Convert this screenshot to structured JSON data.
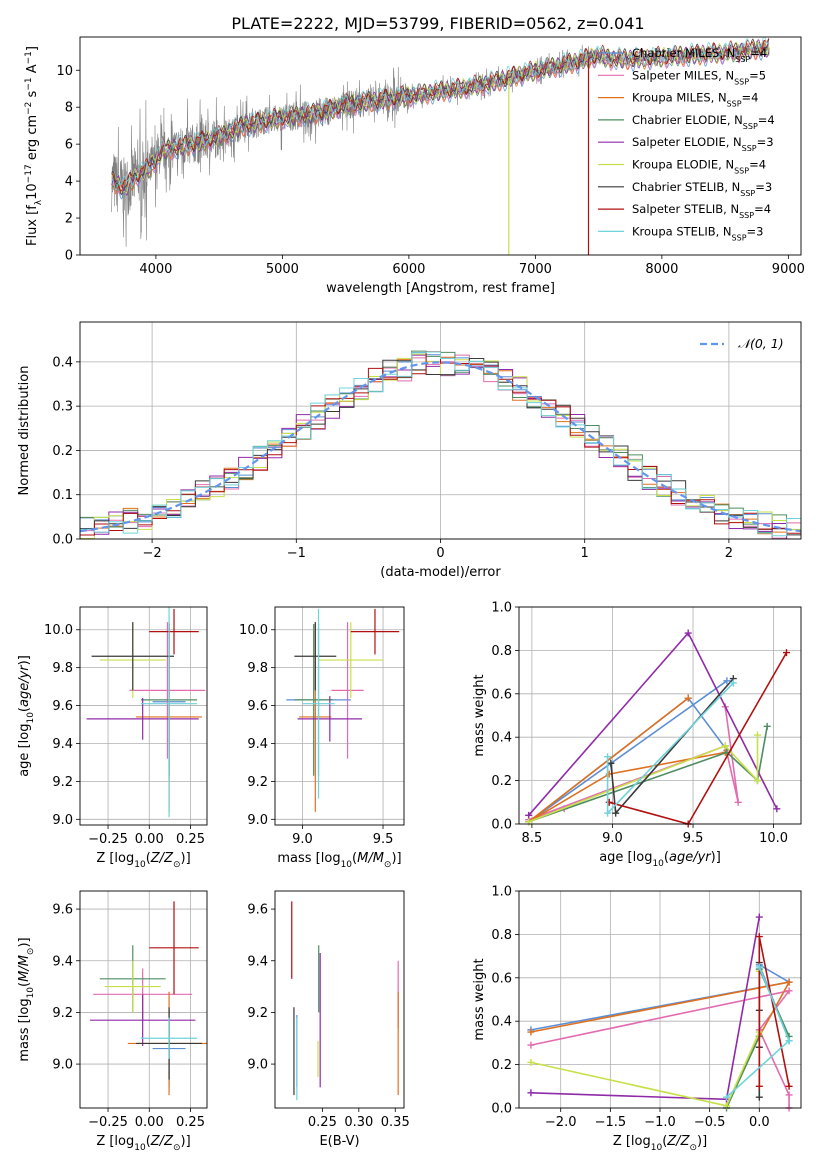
{
  "title": "PLATE=2222, MJD=53799, FIBERID=0562, z=0.041",
  "colors": {
    "chabrier_miles": "#5b8fd4",
    "salpeter_miles": "#e36bb0",
    "kroupa_miles": "#e0701e",
    "chabrier_elodie": "#4e8d62",
    "salpeter_elodie": "#8f2aa8",
    "kroupa_elodie": "#c7e04a",
    "chabrier_stelib": "#3a3a3a",
    "salpeter_stelib": "#b01010",
    "kroupa_stelib": "#6fd3dc",
    "data": "#808080",
    "normal": "#6495ed"
  },
  "legend": [
    {
      "key": "chabrier_miles",
      "label": "Chabrier MILES, N",
      "sub": "SSP",
      "tail": "=4"
    },
    {
      "key": "salpeter_miles",
      "label": "Salpeter MILES, N",
      "sub": "SSP",
      "tail": "=5"
    },
    {
      "key": "kroupa_miles",
      "label": "Kroupa MILES, N",
      "sub": "SSP",
      "tail": "=4"
    },
    {
      "key": "chabrier_elodie",
      "label": "Chabrier ELODIE, N",
      "sub": "SSP",
      "tail": "=4"
    },
    {
      "key": "salpeter_elodie",
      "label": "Salpeter ELODIE, N",
      "sub": "SSP",
      "tail": "=3"
    },
    {
      "key": "kroupa_elodie",
      "label": "Kroupa ELODIE, N",
      "sub": "SSP",
      "tail": "=4"
    },
    {
      "key": "chabrier_stelib",
      "label": "Chabrier STELIB, N",
      "sub": "SSP",
      "tail": "=3"
    },
    {
      "key": "salpeter_stelib",
      "label": "Salpeter STELIB, N",
      "sub": "SSP",
      "tail": "=4"
    },
    {
      "key": "kroupa_stelib",
      "label": "Kroupa STELIB, N",
      "sub": "SSP",
      "tail": "=3"
    }
  ],
  "chart_data": [
    {
      "id": "spectrum",
      "type": "line",
      "xlabel": "wavelength [Angstrom, rest frame]",
      "ylabel": "Flux [f_λ10^-17 erg cm^-2 s^-1 A^-1]",
      "xlim": [
        3400,
        9100
      ],
      "ylim": [
        0,
        11.8
      ],
      "xticks": [
        4000,
        5000,
        6000,
        7000,
        8000,
        9000
      ],
      "yticks": [
        0,
        2,
        4,
        6,
        8,
        10
      ],
      "grid": false,
      "continuum": [
        [
          3650,
          4.0
        ],
        [
          3750,
          3.6
        ],
        [
          3850,
          4.3
        ],
        [
          3950,
          4.7
        ],
        [
          4050,
          5.6
        ],
        [
          4150,
          5.8
        ],
        [
          4300,
          6.0
        ],
        [
          4500,
          6.4
        ],
        [
          4700,
          7.0
        ],
        [
          4900,
          7.3
        ],
        [
          5100,
          7.5
        ],
        [
          5300,
          7.7
        ],
        [
          5500,
          8.1
        ],
        [
          5700,
          8.3
        ],
        [
          5900,
          8.5
        ],
        [
          6100,
          8.7
        ],
        [
          6300,
          8.9
        ],
        [
          6500,
          9.1
        ],
        [
          6700,
          9.4
        ],
        [
          6900,
          9.8
        ],
        [
          7100,
          10.1
        ],
        [
          7300,
          10.4
        ],
        [
          7500,
          10.8
        ],
        [
          7600,
          10.6
        ],
        [
          7800,
          10.6
        ],
        [
          8000,
          10.7
        ],
        [
          8200,
          10.8
        ],
        [
          8400,
          10.9
        ],
        [
          8600,
          11.0
        ],
        [
          8800,
          11.2
        ]
      ],
      "model_x_range": [
        3650,
        8850
      ],
      "dropouts": [
        {
          "key": "kroupa_elodie",
          "x": 6790
        },
        {
          "key": "salpeter_stelib",
          "x": 7420
        }
      ]
    },
    {
      "id": "residual-hist",
      "type": "line",
      "xlabel": "(data-model)/error",
      "ylabel": "Normed distribution",
      "xlim": [
        -2.5,
        2.5
      ],
      "ylim": [
        0,
        0.49
      ],
      "xticks": [
        -2,
        -1,
        0,
        1,
        2
      ],
      "yticks": [
        0.0,
        0.1,
        0.2,
        0.3,
        0.4
      ],
      "grid": true,
      "bin_width": 0.1,
      "legend_label": "𝒩(0, 1)",
      "series": [
        {
          "name": "𝒩(0, 1)",
          "mean": 0,
          "sigma": 1
        }
      ]
    },
    {
      "id": "age-vs-Z",
      "type": "scatter",
      "xlabel": "Z [log10(Z/Z☉)]",
      "ylabel": "age  [log10(age/yr)]",
      "xlim": [
        -0.42,
        0.35
      ],
      "ylim": [
        8.97,
        10.12
      ],
      "xticks": [
        -0.25,
        0.0,
        0.25
      ],
      "xticklabels": [
        "−0.25",
        "0.00",
        "0.25"
      ],
      "yticks": [
        9.0,
        9.2,
        9.4,
        9.6,
        9.8,
        10.0
      ],
      "grid": true,
      "points": [
        {
          "key": "chabrier_miles",
          "x": 0.12,
          "y": 9.62,
          "xerr": 0.1,
          "yerr": 0.42
        },
        {
          "key": "salpeter_miles",
          "x": 0.11,
          "y": 9.68,
          "xerr": 0.23,
          "yerr": 0.36
        },
        {
          "key": "kroupa_miles",
          "x": 0.12,
          "y": 9.54,
          "xerr": 0.2,
          "yerr": 0.5
        },
        {
          "key": "chabrier_elodie",
          "x": 0.12,
          "y": 9.63,
          "xerr": 0.17,
          "yerr": 0.4
        },
        {
          "key": "salpeter_elodie",
          "x": -0.04,
          "y": 9.53,
          "xerr": 0.34,
          "yerr": 0.11
        },
        {
          "key": "kroupa_elodie",
          "x": -0.1,
          "y": 9.84,
          "xerr": 0.2,
          "yerr": 0.2
        },
        {
          "key": "chabrier_stelib",
          "x": -0.1,
          "y": 9.86,
          "xerr": 0.25,
          "yerr": 0.18
        },
        {
          "key": "salpeter_stelib",
          "x": 0.15,
          "y": 9.99,
          "xerr": 0.15,
          "yerr": 0.12
        },
        {
          "key": "kroupa_stelib",
          "x": 0.12,
          "y": 9.61,
          "xerr": 0.17,
          "yerr": 0.6
        }
      ]
    },
    {
      "id": "age-vs-mass",
      "type": "scatter",
      "xlabel": "mass [log10(M/M☉)]",
      "ylabel": "",
      "xlim": [
        8.83,
        9.63
      ],
      "ylim": [
        8.97,
        10.12
      ],
      "xticks": [
        9.0,
        9.5
      ],
      "xticklabels": [
        "9.0",
        "9.5"
      ],
      "yticks": [
        9.0,
        9.2,
        9.4,
        9.6,
        9.8,
        10.0
      ],
      "grid": true,
      "points": [
        {
          "key": "chabrier_miles",
          "x": 9.1,
          "y": 9.63,
          "xerr": 0.2,
          "yerr": 0.4
        },
        {
          "key": "salpeter_miles",
          "x": 9.28,
          "y": 9.68,
          "xerr": 0.1,
          "yerr": 0.36
        },
        {
          "key": "kroupa_miles",
          "x": 9.08,
          "y": 9.54,
          "xerr": 0.1,
          "yerr": 0.5
        },
        {
          "key": "chabrier_elodie",
          "x": 9.07,
          "y": 9.63,
          "xerr": 0.12,
          "yerr": 0.4
        },
        {
          "key": "salpeter_elodie",
          "x": 9.17,
          "y": 9.53,
          "xerr": 0.2,
          "yerr": 0.12
        },
        {
          "key": "kroupa_elodie",
          "x": 9.3,
          "y": 9.84,
          "xerr": 0.2,
          "yerr": 0.2
        },
        {
          "key": "chabrier_stelib",
          "x": 9.08,
          "y": 9.86,
          "xerr": 0.13,
          "yerr": 0.18
        },
        {
          "key": "salpeter_stelib",
          "x": 9.45,
          "y": 9.99,
          "xerr": 0.15,
          "yerr": 0.12
        },
        {
          "key": "kroupa_stelib",
          "x": 9.1,
          "y": 9.61,
          "xerr": 0.1,
          "yerr": 0.5
        }
      ]
    },
    {
      "id": "weight-vs-age",
      "type": "line",
      "xlabel": "age  [log10(age/yr)]",
      "ylabel": "mass weight",
      "xlim": [
        8.42,
        10.17
      ],
      "ylim": [
        0,
        1.0
      ],
      "xticks": [
        8.5,
        9.0,
        9.5,
        10.0
      ],
      "xticklabels": [
        "8.5",
        "9.0",
        "9.5",
        "10.0"
      ],
      "yticks": [
        0.0,
        0.2,
        0.4,
        0.6,
        0.8,
        1.0
      ],
      "grid": true,
      "series": [
        {
          "key": "chabrier_miles",
          "points": [
            [
              9.71,
              0.66
            ],
            [
              8.48,
              0.01
            ],
            [
              9.47,
              0.58
            ],
            [
              9.71,
              0.34
            ]
          ]
        },
        {
          "key": "salpeter_miles",
          "points": [
            [
              9.7,
              0.54
            ],
            [
              9.78,
              0.1
            ],
            [
              9.7,
              0.36
            ],
            [
              8.48,
              0.02
            ],
            [
              8.7,
              0.07
            ]
          ]
        },
        {
          "key": "kroupa_miles",
          "points": [
            [
              9.47,
              0.58
            ],
            [
              8.48,
              0.01
            ],
            [
              8.98,
              0.23
            ],
            [
              9.7,
              0.33
            ]
          ]
        },
        {
          "key": "chabrier_elodie",
          "points": [
            [
              9.96,
              0.45
            ],
            [
              9.9,
              0.2
            ],
            [
              9.71,
              0.33
            ],
            [
              8.48,
              0.01
            ]
          ]
        },
        {
          "key": "salpeter_elodie",
          "points": [
            [
              10.02,
              0.07
            ],
            [
              9.47,
              0.88
            ],
            [
              8.48,
              0.04
            ]
          ]
        },
        {
          "key": "kroupa_elodie",
          "points": [
            [
              9.9,
              0.41
            ],
            [
              9.9,
              0.2
            ],
            [
              9.7,
              0.36
            ],
            [
              8.48,
              0.01
            ]
          ]
        },
        {
          "key": "chabrier_stelib",
          "points": [
            [
              9.75,
              0.67
            ],
            [
              9.02,
              0.05
            ],
            [
              8.99,
              0.28
            ]
          ]
        },
        {
          "key": "salpeter_stelib",
          "points": [
            [
              10.08,
              0.79
            ],
            [
              9.47,
              0.0
            ],
            [
              8.98,
              0.1
            ]
          ]
        },
        {
          "key": "kroupa_stelib",
          "points": [
            [
              9.75,
              0.65
            ],
            [
              8.97,
              0.05
            ],
            [
              8.97,
              0.31
            ]
          ]
        }
      ]
    },
    {
      "id": "mass-vs-Z",
      "type": "scatter",
      "xlabel": "Z [log10(Z/Z☉)]",
      "ylabel": "mass [log10(M/M☉)]",
      "xlim": [
        -0.42,
        0.35
      ],
      "ylim": [
        8.83,
        9.67
      ],
      "xticks": [
        -0.25,
        0.0,
        0.25
      ],
      "xticklabels": [
        "−0.25",
        "0.00",
        "0.25"
      ],
      "yticks": [
        9.0,
        9.2,
        9.4,
        9.6
      ],
      "grid": true,
      "points": [
        {
          "key": "chabrier_miles",
          "x": 0.12,
          "y": 9.06,
          "xerr": 0.1,
          "yerr": 0.15
        },
        {
          "key": "salpeter_miles",
          "x": -0.04,
          "y": 9.27,
          "xerr": 0.3,
          "yerr": 0.1
        },
        {
          "key": "kroupa_miles",
          "x": 0.12,
          "y": 9.08,
          "xerr": 0.25,
          "yerr": 0.2
        },
        {
          "key": "chabrier_elodie",
          "x": -0.1,
          "y": 9.33,
          "xerr": 0.2,
          "yerr": 0.13
        },
        {
          "key": "salpeter_elodie",
          "x": -0.04,
          "y": 9.17,
          "xerr": 0.32,
          "yerr": 0.1
        },
        {
          "key": "kroupa_elodie",
          "x": -0.1,
          "y": 9.3,
          "xerr": 0.17,
          "yerr": 0.1
        },
        {
          "key": "chabrier_stelib",
          "x": 0.12,
          "y": 9.08,
          "xerr": 0.2,
          "yerr": 0.14
        },
        {
          "key": "salpeter_stelib",
          "x": 0.15,
          "y": 9.45,
          "xerr": 0.15,
          "yerr": 0.18
        },
        {
          "key": "kroupa_stelib",
          "x": 0.12,
          "y": 9.1,
          "xerr": 0.17,
          "yerr": 0.08
        }
      ]
    },
    {
      "id": "mass-vs-ebv",
      "type": "scatter",
      "xlabel": "E(B-V)",
      "ylabel": "",
      "xlim": [
        0.185,
        0.362
      ],
      "ylim": [
        8.83,
        9.67
      ],
      "xticks": [
        0.25,
        0.3,
        0.35
      ],
      "xticklabels": [
        "0.25",
        "0.30",
        "0.35"
      ],
      "yticks": [
        9.0,
        9.2,
        9.4,
        9.6
      ],
      "grid": false,
      "points": [
        {
          "key": "chabrier_miles",
          "x": 0.215,
          "y": 9.05,
          "xerr": 0,
          "yerr": 0.14
        },
        {
          "key": "salpeter_miles",
          "x": 0.354,
          "y": 9.27,
          "xerr": 0,
          "yerr": 0.13
        },
        {
          "key": "kroupa_miles",
          "x": 0.354,
          "y": 9.08,
          "xerr": 0,
          "yerr": 0.2
        },
        {
          "key": "chabrier_elodie",
          "x": 0.245,
          "y": 9.33,
          "xerr": 0,
          "yerr": 0.13
        },
        {
          "key": "salpeter_elodie",
          "x": 0.247,
          "y": 9.17,
          "xerr": 0,
          "yerr": 0.26
        },
        {
          "key": "kroupa_elodie",
          "x": 0.244,
          "y": 9.02,
          "xerr": 0,
          "yerr": 0.07
        },
        {
          "key": "chabrier_stelib",
          "x": 0.211,
          "y": 9.05,
          "xerr": 0,
          "yerr": 0.17
        },
        {
          "key": "salpeter_stelib",
          "x": 0.208,
          "y": 9.48,
          "xerr": 0,
          "yerr": 0.15
        },
        {
          "key": "kroupa_stelib",
          "x": 0.215,
          "y": 9.02,
          "xerr": 0,
          "yerr": 0.16
        }
      ]
    },
    {
      "id": "weight-vs-Z",
      "type": "line",
      "xlabel": "Z [log10(Z/Z☉)]",
      "ylabel": "mass weight",
      "xlim": [
        -2.42,
        0.42
      ],
      "ylim": [
        0,
        1.0
      ],
      "xticks": [
        -2.0,
        -1.5,
        -1.0,
        -0.5,
        0.0
      ],
      "xticklabels": [
        "−2.0",
        "−1.5",
        "−1.0",
        "−0.5",
        "0.0"
      ],
      "yticks": [
        0.0,
        0.2,
        0.4,
        0.6,
        0.8,
        1.0
      ],
      "grid": true,
      "series": [
        {
          "key": "chabrier_miles",
          "points": [
            [
              -2.3,
              0.36
            ],
            [
              0.3,
              0.58
            ],
            [
              0.0,
              0.66
            ],
            [
              0.3,
              0.31
            ]
          ]
        },
        {
          "key": "salpeter_miles",
          "points": [
            [
              -2.3,
              0.29
            ],
            [
              0.3,
              0.54
            ],
            [
              0.0,
              0.36
            ],
            [
              0.3,
              0.06
            ],
            [
              0.3,
              0.0
            ]
          ]
        },
        {
          "key": "kroupa_miles",
          "points": [
            [
              -2.3,
              0.35
            ],
            [
              0.3,
              0.58
            ],
            [
              0.0,
              0.33
            ],
            [
              -0.33,
              0.01
            ]
          ]
        },
        {
          "key": "chabrier_elodie",
          "points": [
            [
              0.3,
              0.33
            ],
            [
              0.0,
              0.64
            ],
            [
              0.0,
              0.33
            ],
            [
              -0.33,
              0.0
            ]
          ]
        },
        {
          "key": "salpeter_elodie",
          "points": [
            [
              -2.3,
              0.07
            ],
            [
              -0.33,
              0.04
            ],
            [
              0.0,
              0.88
            ]
          ]
        },
        {
          "key": "kroupa_elodie",
          "points": [
            [
              -2.3,
              0.21
            ],
            [
              -0.33,
              0.01
            ],
            [
              0.0,
              0.35
            ],
            [
              0.0,
              0.63
            ]
          ]
        },
        {
          "key": "chabrier_stelib",
          "points": [
            [
              0.0,
              0.67
            ],
            [
              0.0,
              0.28
            ],
            [
              0.0,
              0.05
            ],
            [
              0.0,
              0.45
            ]
          ]
        },
        {
          "key": "salpeter_stelib",
          "points": [
            [
              0.3,
              0.1
            ],
            [
              0.0,
              0.79
            ],
            [
              0.0,
              0.1
            ]
          ]
        },
        {
          "key": "kroupa_stelib",
          "points": [
            [
              0.0,
              0.65
            ],
            [
              0.3,
              0.31
            ],
            [
              -0.33,
              0.05
            ]
          ]
        }
      ]
    }
  ]
}
